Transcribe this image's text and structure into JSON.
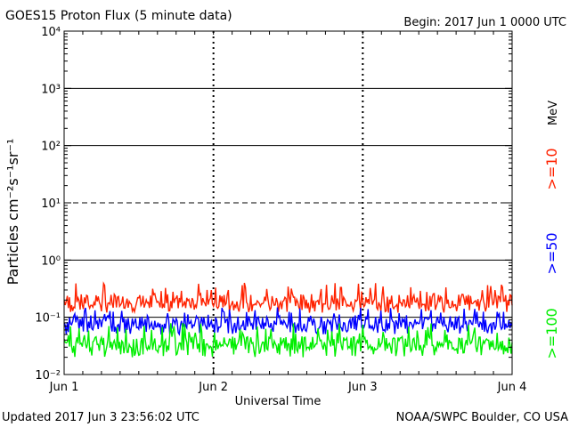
{
  "header": {
    "title": "GOES15 Proton Flux (5 minute data)",
    "begin": "Begin: 2017 Jun 1 0000 UTC"
  },
  "footer": {
    "updated": "Updated 2017 Jun  3 23:56:02 UTC",
    "credit": "NOAA/SWPC Boulder, CO USA"
  },
  "colors": {
    "ge10": "#ff2200",
    "ge50": "#0000ff",
    "ge100": "#00ee00",
    "axis": "#000000"
  },
  "chart_data": {
    "type": "line",
    "title": "GOES15 Proton Flux (5 minute data)",
    "xlabel": "Universal Time",
    "ylabel": "Particles cm⁻²s⁻¹sr⁻¹",
    "y_scale": "log",
    "ylim": [
      0.01,
      10000
    ],
    "xlim": [
      "2017-06-01 00:00",
      "2017-06-04 00:00"
    ],
    "x_ticks": [
      "Jun 1",
      "Jun 2",
      "Jun 3",
      "Jun 4"
    ],
    "y_ticks": [
      "10⁻²",
      "10⁻¹",
      "10⁰",
      "10¹",
      "10²",
      "10³",
      "10⁴"
    ],
    "grid": "horizontal lines at decades",
    "units_label": "MeV",
    "series": [
      {
        "name": ">=10",
        "color": "#ff2200",
        "values_range": [
          0.12,
          0.4
        ],
        "typical": 0.19
      },
      {
        "name": ">=50",
        "color": "#0000ff",
        "values_range": [
          0.05,
          0.15
        ],
        "typical": 0.08
      },
      {
        "name": ">=100",
        "color": "#00ee00",
        "values_range": [
          0.02,
          0.08
        ],
        "typical": 0.035
      }
    ]
  }
}
